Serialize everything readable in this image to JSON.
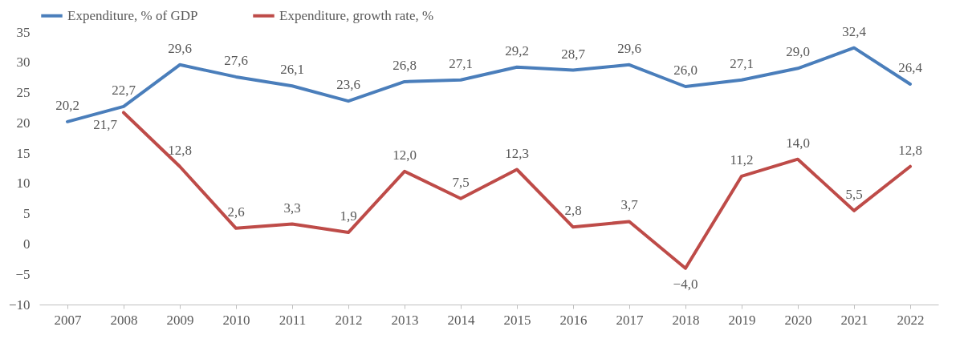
{
  "chart_data": {
    "type": "line",
    "categories": [
      "2007",
      "2008",
      "2009",
      "2010",
      "2011",
      "2012",
      "2013",
      "2014",
      "2015",
      "2016",
      "2017",
      "2018",
      "2019",
      "2020",
      "2021",
      "2022"
    ],
    "series": [
      {
        "name": "Expenditure, % of GDP",
        "color": "#4a7ebb",
        "values": [
          20.2,
          22.7,
          29.6,
          27.6,
          26.1,
          23.6,
          26.8,
          27.1,
          29.2,
          28.7,
          29.6,
          26.0,
          27.1,
          29.0,
          32.4,
          26.4
        ],
        "value_labels": [
          "20,2",
          "22,7",
          "29,6",
          "27,6",
          "26,1",
          "23,6",
          "26,8",
          "27,1",
          "29,2",
          "28,7",
          "29,6",
          "26,0",
          "27,1",
          "29,0",
          "32,4",
          "26,4"
        ]
      },
      {
        "name": "Expenditure, growth rate, %",
        "color": "#be4b48",
        "values": [
          null,
          21.7,
          12.8,
          2.6,
          3.3,
          1.9,
          12.0,
          7.5,
          12.3,
          2.8,
          3.7,
          -4.0,
          11.2,
          14.0,
          5.5,
          12.8
        ],
        "value_labels": [
          null,
          "21,7",
          "12,8",
          "2,6",
          "3,3",
          "1,9",
          "12,0",
          "7,5",
          "12,3",
          "2,8",
          "3,7",
          "−4,0",
          "11,2",
          "14,0",
          "5,5",
          "12,8"
        ]
      }
    ],
    "ylim": [
      -10,
      35
    ],
    "yticks": [
      {
        "value": -10,
        "label": "−10"
      },
      {
        "value": -5,
        "label": "−5"
      },
      0,
      5,
      10,
      15,
      20,
      25,
      30,
      35
    ],
    "grid": false,
    "legend": "top",
    "marker": "none",
    "line_style": "solid"
  }
}
